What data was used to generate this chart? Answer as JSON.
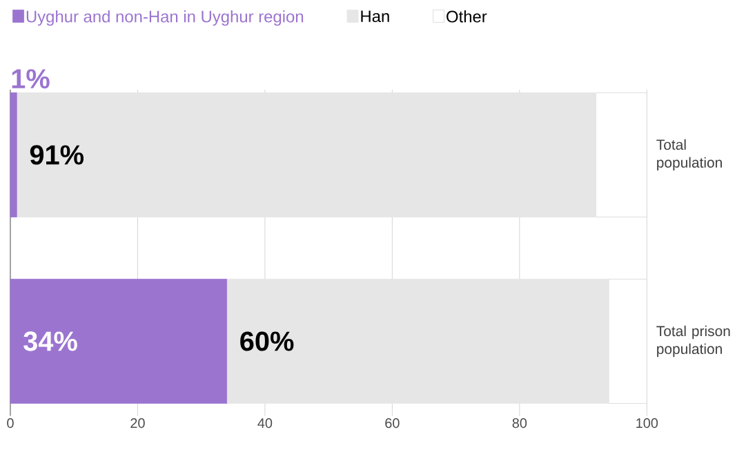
{
  "chart_data": {
    "type": "bar",
    "orientation": "horizontal",
    "stacked": true,
    "categories": [
      "Total population",
      "Total prison population"
    ],
    "series": [
      {
        "name": "Uyghur and non-Han in Uyghur region",
        "color": "#9b74d0",
        "values": [
          1,
          34
        ],
        "value_labels": [
          "1%",
          "34%"
        ]
      },
      {
        "name": "Han",
        "color": "#e6e6e6",
        "values": [
          91,
          60
        ],
        "value_labels": [
          "91%",
          "60%"
        ]
      },
      {
        "name": "Other",
        "color": "#ffffff",
        "values": [
          8,
          6
        ]
      }
    ],
    "xlim": [
      0,
      100
    ],
    "xticks": [
      0,
      20,
      40,
      60,
      80,
      100
    ],
    "grid": "x",
    "legend": "top left"
  }
}
